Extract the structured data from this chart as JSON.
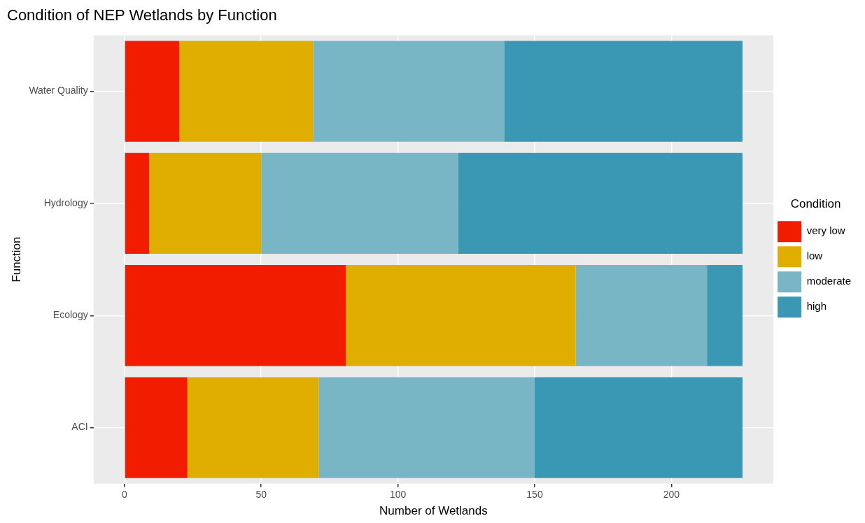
{
  "chart_data": {
    "type": "bar",
    "orientation": "horizontal",
    "stacked": true,
    "title": "Condition of NEP Wetlands by Function",
    "xlabel": "Number of Wetlands",
    "ylabel": "Function",
    "legend_title": "Condition",
    "legend": "right",
    "grid": true,
    "categories": [
      "Water Quality",
      "Hydrology",
      "Ecology",
      "ACI"
    ],
    "xlim": [
      -11.3,
      237.3
    ],
    "xticks": [
      0,
      50,
      100,
      150,
      200
    ],
    "series": [
      {
        "name": "very low",
        "color": "#f21c00",
        "values": [
          20,
          9,
          81,
          23
        ]
      },
      {
        "name": "low",
        "color": "#e0ae00",
        "values": [
          49,
          41,
          84,
          48
        ]
      },
      {
        "name": "moderate",
        "color": "#78b6c6",
        "values": [
          70,
          72,
          48,
          79
        ]
      },
      {
        "name": "high",
        "color": "#3b98b4",
        "values": [
          87,
          104,
          13,
          76
        ]
      }
    ]
  }
}
